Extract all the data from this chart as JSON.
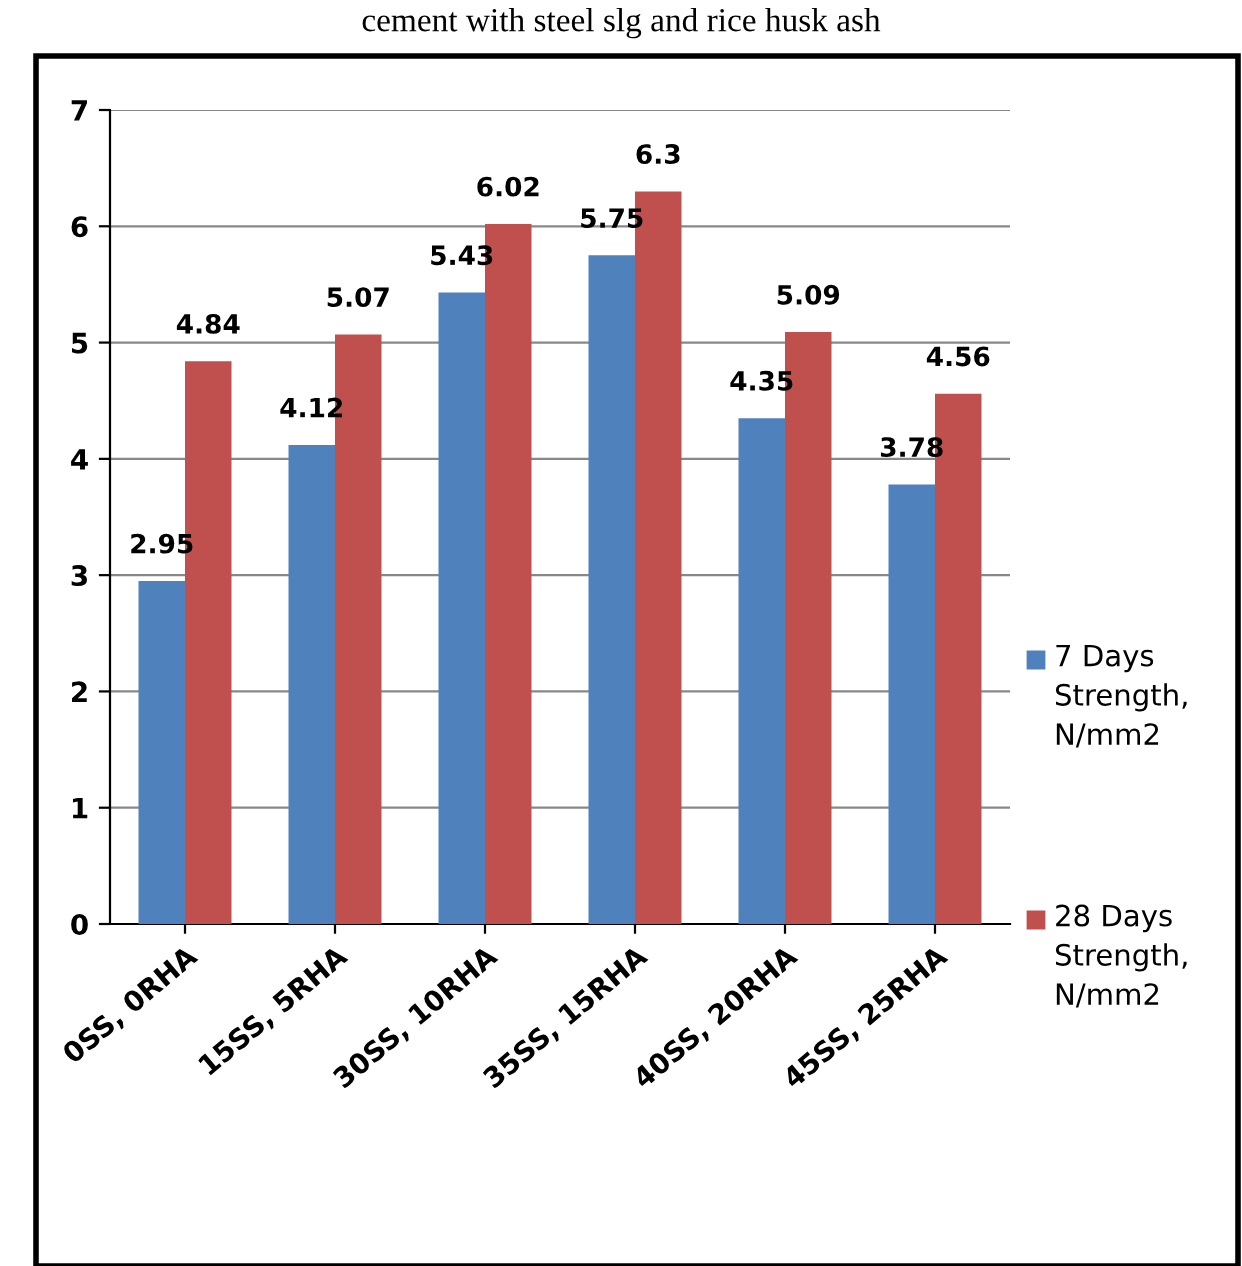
{
  "chart_data": {
    "type": "bar",
    "title": "cement with steel slg and rice husk ash",
    "categories": [
      "0SS, 0RHA",
      "15SS, 5RHA",
      "30SS, 10RHA",
      "35SS, 15RHA",
      "40SS, 20RHA",
      "45SS, 25RHA"
    ],
    "series": [
      {
        "name": "7 Days Strength, N/mm2",
        "color": "#4f81bd",
        "values": [
          2.95,
          4.12,
          5.43,
          5.75,
          4.35,
          3.78
        ]
      },
      {
        "name": "28 Days Strength, N/mm2",
        "color": "#c0504d",
        "values": [
          4.84,
          5.07,
          6.02,
          6.3,
          5.09,
          4.56
        ]
      }
    ],
    "ylim": [
      0,
      7
    ],
    "yticks": [
      0,
      1,
      2,
      3,
      4,
      5,
      6,
      7
    ],
    "grid": "y",
    "legend": "right",
    "data_labels": true
  }
}
